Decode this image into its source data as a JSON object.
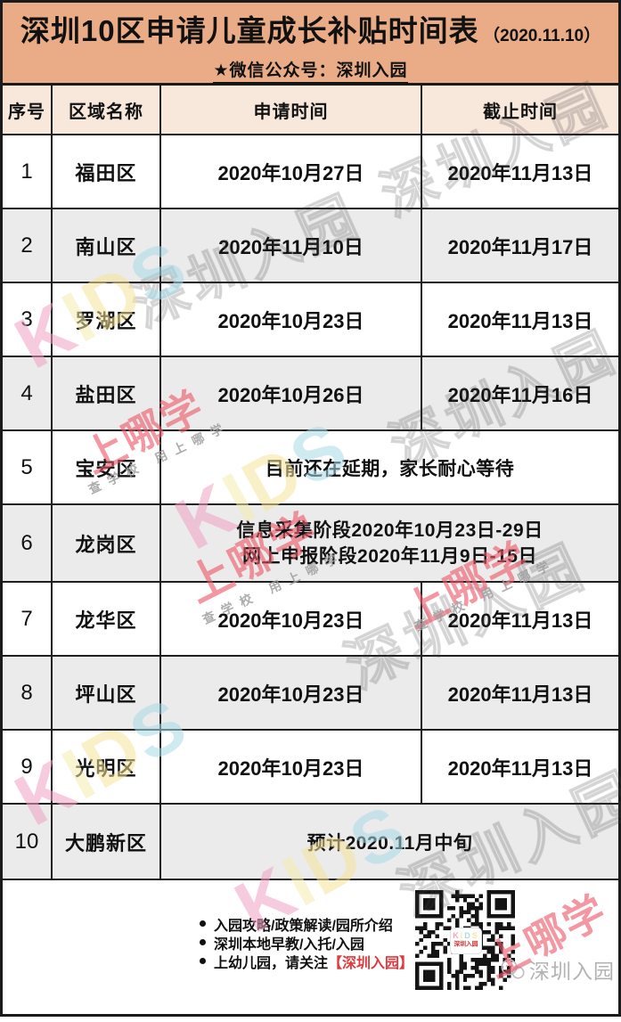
{
  "banner": {
    "title": "深圳10区申请儿童成长补贴时间表",
    "title_suffix": "（2020.11.10）",
    "subtitle": "★微信公众号：深圳入园"
  },
  "table": {
    "headers": [
      "序号",
      "区域名称",
      "申请时间",
      "截止时间"
    ],
    "rows": [
      {
        "no": "1",
        "district": "福田区",
        "apply": "2020年10月27日",
        "deadline": "2020年11月13日"
      },
      {
        "no": "2",
        "district": "南山区",
        "apply": "2020年11月10日",
        "deadline": "2020年11月17日"
      },
      {
        "no": "3",
        "district": "罗湖区",
        "apply": "2020年10月23日",
        "deadline": "2020年11月13日"
      },
      {
        "no": "4",
        "district": "盐田区",
        "apply": "2020年10月26日",
        "deadline": "2020年11月16日"
      },
      {
        "no": "5",
        "district": "宝安区",
        "merged_text": "目前还在延期，家长耐心等待"
      },
      {
        "no": "6",
        "district": "龙岗区",
        "merged_lines": [
          "信息采集阶段2020年10月23日-29日",
          "网上申报阶段2020年11月9日-15日"
        ]
      },
      {
        "no": "7",
        "district": "龙华区",
        "apply": "2020年10月23日",
        "deadline": "2020年11月13日"
      },
      {
        "no": "8",
        "district": "坪山区",
        "apply": "2020年10月23日",
        "deadline": "2020年11月13日"
      },
      {
        "no": "9",
        "district": "光明区",
        "apply": "2020年10月23日",
        "deadline": "2020年11月13日"
      },
      {
        "no": "10",
        "district": "大鹏新区",
        "merged_text": "预计2020.11月中旬"
      }
    ]
  },
  "footer": {
    "bullets": [
      "入园攻略/政策解读/园所介绍",
      "深圳本地早教/入托/入园"
    ],
    "bullet3_prefix": "上幼儿园，请关注",
    "bullet3_highlight": "【深圳入园】",
    "qr_label_name": "深圳入园",
    "wechat_watermark": "深圳入园"
  },
  "watermarks": {
    "brand_outline": "深圳入园",
    "kids_letters": [
      "K",
      "I",
      "D",
      "S"
    ],
    "shangnaxue": "上哪学",
    "shangnaxue_sub": "查学校 用上哪学"
  },
  "colors": {
    "banner_bg": "#E9AC86",
    "header_row_bg": "#F8E7DB",
    "alt_row_bg": "#EBEBEB",
    "grid_border": "#1F1F1F",
    "highlight_red": "#DF3A3E",
    "watermark_red": "#ED5A6A",
    "kids_pink": "#F2A2C4",
    "kids_yellow": "#F5ECAE",
    "kids_cyan": "#A9DBE7"
  }
}
